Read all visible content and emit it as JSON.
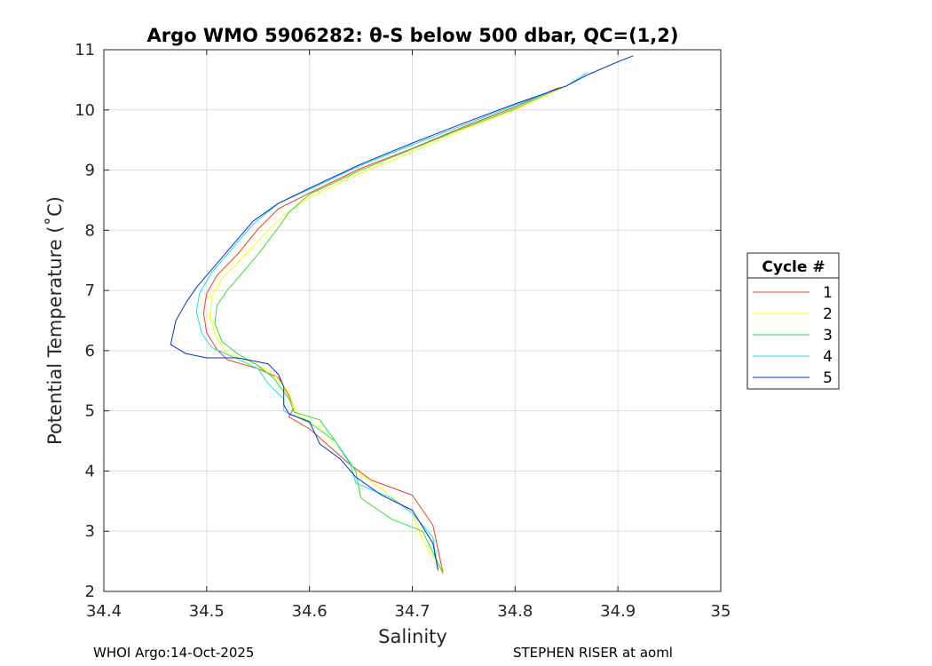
{
  "chart_data": {
    "type": "line",
    "title": "Argo WMO 5906282: θ-S below 500 dbar,  QC=(1,2)",
    "xlabel": "Salinity",
    "ylabel": "Potential Temperature (˚C)",
    "xlim": [
      34.4,
      35.0
    ],
    "ylim": [
      2,
      11
    ],
    "xticks": [
      "34.4",
      "34.5",
      "34.6",
      "34.7",
      "34.8",
      "34.9",
      "35"
    ],
    "yticks": [
      "2",
      "3",
      "4",
      "5",
      "6",
      "7",
      "8",
      "9",
      "10",
      "11"
    ],
    "grid": true,
    "legend": {
      "title": "Cycle #",
      "placement": "outside-right"
    },
    "series": [
      {
        "name": "1",
        "color": "#e8421c",
        "points": [
          [
            34.842,
            10.37
          ],
          [
            34.8,
            10.05
          ],
          [
            34.75,
            9.72
          ],
          [
            34.7,
            9.36
          ],
          [
            34.65,
            9.03
          ],
          [
            34.6,
            8.62
          ],
          [
            34.57,
            8.36
          ],
          [
            34.55,
            8.02
          ],
          [
            34.53,
            7.6
          ],
          [
            34.51,
            7.25
          ],
          [
            34.5,
            6.95
          ],
          [
            34.497,
            6.62
          ],
          [
            34.5,
            6.3
          ],
          [
            34.51,
            6.02
          ],
          [
            34.52,
            5.85
          ],
          [
            34.55,
            5.7
          ],
          [
            34.57,
            5.55
          ],
          [
            34.58,
            5.25
          ],
          [
            34.585,
            5.05
          ],
          [
            34.58,
            4.9
          ],
          [
            34.6,
            4.7
          ],
          [
            34.62,
            4.4
          ],
          [
            34.64,
            4.1
          ],
          [
            34.66,
            3.85
          ],
          [
            34.7,
            3.6
          ],
          [
            34.72,
            3.1
          ],
          [
            34.73,
            2.3
          ]
        ]
      },
      {
        "name": "2",
        "color": "#ffff00",
        "points": [
          [
            34.845,
            10.36
          ],
          [
            34.8,
            10.0
          ],
          [
            34.75,
            9.68
          ],
          [
            34.7,
            9.3
          ],
          [
            34.65,
            8.95
          ],
          [
            34.6,
            8.55
          ],
          [
            34.575,
            8.25
          ],
          [
            34.56,
            8.0
          ],
          [
            34.535,
            7.55
          ],
          [
            34.515,
            7.2
          ],
          [
            34.505,
            6.9
          ],
          [
            34.503,
            6.55
          ],
          [
            34.51,
            6.2
          ],
          [
            34.52,
            5.95
          ],
          [
            34.545,
            5.8
          ],
          [
            34.565,
            5.62
          ],
          [
            34.58,
            5.3
          ],
          [
            34.585,
            5.05
          ],
          [
            34.59,
            4.92
          ],
          [
            34.61,
            4.72
          ],
          [
            34.63,
            4.35
          ],
          [
            34.645,
            4.0
          ],
          [
            34.67,
            3.7
          ],
          [
            34.7,
            3.3
          ],
          [
            34.71,
            2.85
          ],
          [
            34.73,
            2.3
          ]
        ]
      },
      {
        "name": "3",
        "color": "#33dd33",
        "points": [
          [
            34.845,
            10.38
          ],
          [
            34.8,
            10.02
          ],
          [
            34.75,
            9.7
          ],
          [
            34.7,
            9.35
          ],
          [
            34.65,
            9.0
          ],
          [
            34.6,
            8.6
          ],
          [
            34.58,
            8.3
          ],
          [
            34.57,
            8.05
          ],
          [
            34.55,
            7.6
          ],
          [
            34.535,
            7.3
          ],
          [
            34.52,
            7.0
          ],
          [
            34.51,
            6.75
          ],
          [
            34.508,
            6.45
          ],
          [
            34.515,
            6.15
          ],
          [
            34.53,
            5.95
          ],
          [
            34.55,
            5.75
          ],
          [
            34.565,
            5.55
          ],
          [
            34.58,
            5.2
          ],
          [
            34.585,
            4.98
          ],
          [
            34.61,
            4.85
          ],
          [
            34.625,
            4.5
          ],
          [
            34.645,
            4.0
          ],
          [
            34.65,
            3.55
          ],
          [
            34.68,
            3.2
          ],
          [
            34.71,
            3.0
          ],
          [
            34.73,
            2.3
          ]
        ]
      },
      {
        "name": "4",
        "color": "#22dddd",
        "points": [
          [
            34.87,
            10.62
          ],
          [
            34.85,
            10.4
          ],
          [
            34.8,
            10.08
          ],
          [
            34.75,
            9.75
          ],
          [
            34.7,
            9.42
          ],
          [
            34.65,
            9.08
          ],
          [
            34.6,
            8.68
          ],
          [
            34.57,
            8.45
          ],
          [
            34.545,
            8.1
          ],
          [
            34.525,
            7.7
          ],
          [
            34.505,
            7.3
          ],
          [
            34.493,
            6.95
          ],
          [
            34.49,
            6.65
          ],
          [
            34.495,
            6.3
          ],
          [
            34.505,
            6.05
          ],
          [
            34.525,
            5.9
          ],
          [
            34.55,
            5.7
          ],
          [
            34.56,
            5.45
          ],
          [
            34.575,
            5.2
          ],
          [
            34.575,
            5.0
          ],
          [
            34.6,
            4.8
          ],
          [
            34.625,
            4.5
          ],
          [
            34.64,
            4.1
          ],
          [
            34.645,
            3.8
          ],
          [
            34.68,
            3.55
          ],
          [
            34.7,
            3.3
          ],
          [
            34.72,
            2.9
          ],
          [
            34.725,
            2.35
          ]
        ]
      },
      {
        "name": "5",
        "color": "#0033cc",
        "points": [
          [
            34.915,
            10.9
          ],
          [
            34.9,
            10.8
          ],
          [
            34.87,
            10.58
          ],
          [
            34.85,
            10.4
          ],
          [
            34.8,
            10.1
          ],
          [
            34.75,
            9.78
          ],
          [
            34.7,
            9.45
          ],
          [
            34.65,
            9.1
          ],
          [
            34.6,
            8.7
          ],
          [
            34.57,
            8.45
          ],
          [
            34.545,
            8.15
          ],
          [
            34.525,
            7.75
          ],
          [
            34.505,
            7.35
          ],
          [
            34.49,
            7.05
          ],
          [
            34.48,
            6.8
          ],
          [
            34.47,
            6.5
          ],
          [
            34.465,
            6.1
          ],
          [
            34.48,
            5.95
          ],
          [
            34.5,
            5.88
          ],
          [
            34.53,
            5.88
          ],
          [
            34.56,
            5.78
          ],
          [
            34.57,
            5.6
          ],
          [
            34.575,
            5.4
          ],
          [
            34.575,
            5.1
          ],
          [
            34.58,
            4.95
          ],
          [
            34.6,
            4.82
          ],
          [
            34.61,
            4.45
          ],
          [
            34.63,
            4.2
          ],
          [
            34.645,
            3.9
          ],
          [
            34.67,
            3.6
          ],
          [
            34.7,
            3.35
          ],
          [
            34.72,
            2.8
          ],
          [
            34.725,
            2.35
          ]
        ]
      }
    ]
  },
  "footer": {
    "left": "WHOI Argo:14-Oct-2025",
    "right": "STEPHEN RISER at aoml"
  }
}
